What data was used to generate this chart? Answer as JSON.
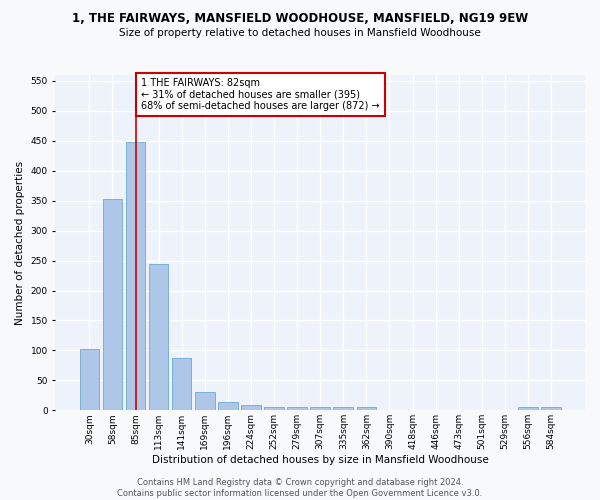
{
  "title": "1, THE FAIRWAYS, MANSFIELD WOODHOUSE, MANSFIELD, NG19 9EW",
  "subtitle": "Size of property relative to detached houses in Mansfield Woodhouse",
  "xlabel": "Distribution of detached houses by size in Mansfield Woodhouse",
  "ylabel": "Number of detached properties",
  "footer": "Contains HM Land Registry data © Crown copyright and database right 2024.\nContains public sector information licensed under the Open Government Licence v3.0.",
  "categories": [
    "30sqm",
    "58sqm",
    "85sqm",
    "113sqm",
    "141sqm",
    "169sqm",
    "196sqm",
    "224sqm",
    "252sqm",
    "279sqm",
    "307sqm",
    "335sqm",
    "362sqm",
    "390sqm",
    "418sqm",
    "446sqm",
    "473sqm",
    "501sqm",
    "529sqm",
    "556sqm",
    "584sqm"
  ],
  "values": [
    103,
    353,
    448,
    245,
    88,
    30,
    14,
    9,
    5,
    5,
    5,
    5,
    5,
    0,
    0,
    0,
    0,
    0,
    0,
    5,
    5
  ],
  "bar_color": "#aec6e8",
  "bar_edgecolor": "#6aabd2",
  "background_color": "#eef3fb",
  "grid_color": "#ffffff",
  "vline_color": "#cc0000",
  "annotation_text": "1 THE FAIRWAYS: 82sqm\n← 31% of detached houses are smaller (395)\n68% of semi-detached houses are larger (872) →",
  "annotation_box_color": "#ffffff",
  "annotation_box_edgecolor": "#cc0000",
  "ylim": [
    0,
    560
  ],
  "yticks": [
    0,
    50,
    100,
    150,
    200,
    250,
    300,
    350,
    400,
    450,
    500,
    550
  ],
  "fig_facecolor": "#f8f9fa",
  "title_fontsize": 8.5,
  "subtitle_fontsize": 7.5,
  "ylabel_fontsize": 7.5,
  "xlabel_fontsize": 7.5,
  "tick_fontsize": 6.5,
  "annotation_fontsize": 7.0,
  "footer_fontsize": 6.0
}
